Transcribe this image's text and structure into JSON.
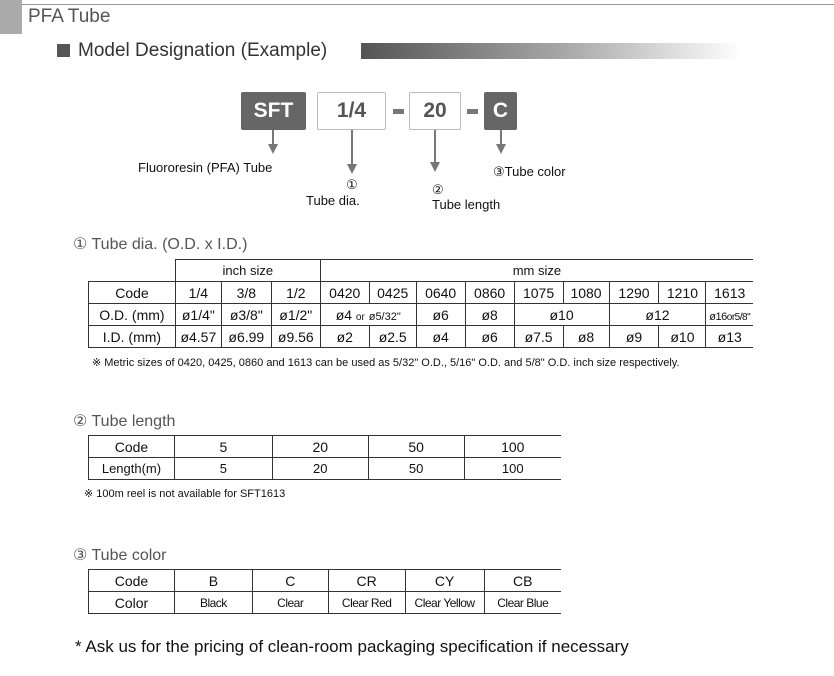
{
  "page_title": "PFA Tube",
  "section_title": "Model Designation (Example)",
  "model": {
    "parts": [
      "SFT",
      "1/4",
      "20",
      "C"
    ],
    "sep": "-"
  },
  "labels": {
    "product": "Fluororesin (PFA) Tube",
    "dia_num": "①",
    "dia": "Tube dia.",
    "len_num": "②",
    "len": "Tube length",
    "color": "③Tube color"
  },
  "dia_section": {
    "title": "① Tube dia. (O.D. x I.D.)",
    "inch_size": "inch size",
    "mm_size": "mm size",
    "rows": [
      [
        "Code",
        "1/4",
        "3/8",
        "1/2",
        "0420",
        "0425",
        "0640",
        "0860",
        "1075",
        "1080",
        "1290",
        "1210",
        "1613"
      ],
      [
        "O.D. (mm)",
        "ø1/4\"",
        "ø3/8\"",
        "ø1/2\"",
        "ø4",
        "or",
        "ø5/32\"",
        "ø6",
        "ø8",
        "ø10",
        "ø12",
        "ø16",
        "or",
        "5/8\""
      ],
      [
        "I.D. (mm)",
        "ø4.57",
        "ø6.99",
        "ø9.56",
        "ø2",
        "ø2.5",
        "ø4",
        "ø6",
        "ø7.5",
        "ø8",
        "ø9",
        "ø10",
        "ø13"
      ]
    ],
    "note": "※  Metric sizes of 0420, 0425, 0860 and 1613 can be used as 5/32\" O.D., 5/16\" O.D. and  5/8\" O.D. inch size respectively."
  },
  "len_section": {
    "title": "② Tube length",
    "rows": [
      [
        "Code",
        "5",
        "20",
        "50",
        "100"
      ],
      [
        "Length(m)",
        "5",
        "20",
        "50",
        "100"
      ]
    ],
    "note": "※  100m reel is not available for SFT1613"
  },
  "color_section": {
    "title": "③ Tube color",
    "rows": [
      [
        "Code",
        "B",
        "C",
        "CR",
        "CY",
        "CB"
      ],
      [
        "Color",
        "Black",
        "Clear",
        "Clear Red",
        "Clear Yellow",
        "Clear Blue"
      ]
    ]
  },
  "footer": "* Ask us for the pricing of clean-room packaging specification if necessary"
}
